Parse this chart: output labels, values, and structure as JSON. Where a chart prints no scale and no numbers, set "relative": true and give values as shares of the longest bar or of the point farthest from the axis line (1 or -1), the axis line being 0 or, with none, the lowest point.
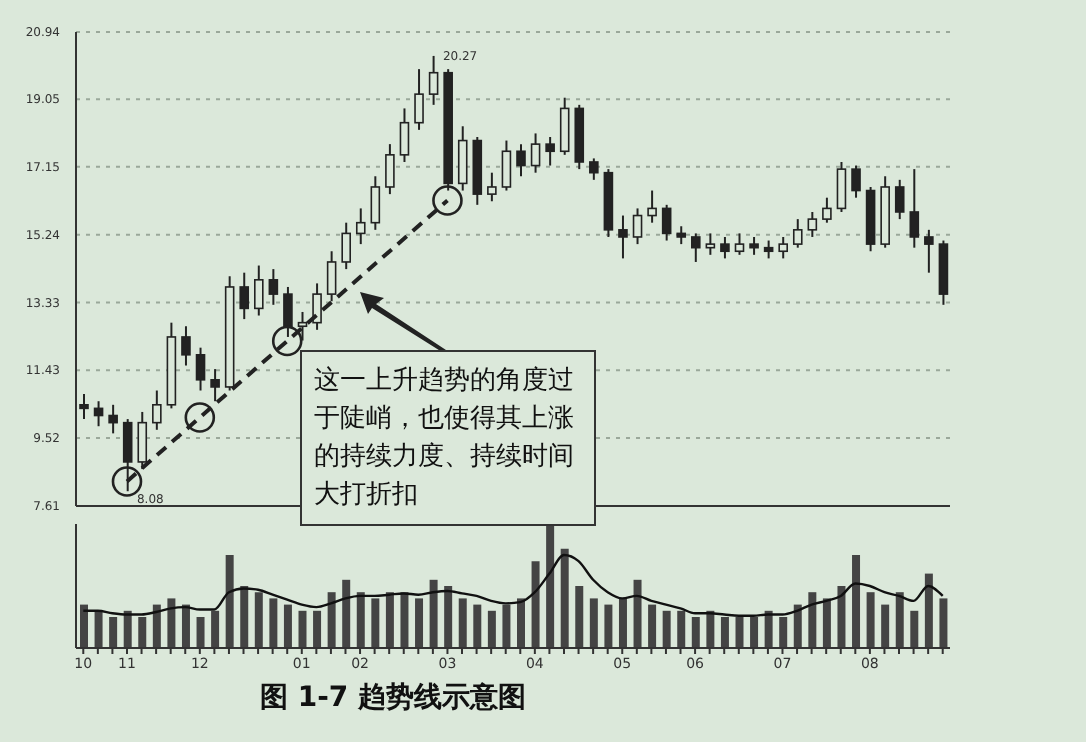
{
  "chart_data": [
    {
      "type": "candlestick",
      "color": "#222222",
      "categories": [
        "10",
        null,
        null,
        "11",
        null,
        null,
        null,
        null,
        "12",
        null,
        null,
        null,
        null,
        null,
        null,
        "01",
        null,
        null,
        null,
        "02",
        null,
        null,
        null,
        null,
        null,
        "03",
        null,
        null,
        null,
        null,
        null,
        "04",
        null,
        null,
        null,
        null,
        null,
        "05",
        null,
        null,
        null,
        null,
        "06",
        null,
        null,
        null,
        null,
        null,
        "07",
        null,
        null,
        null,
        null,
        null,
        "08",
        null,
        null,
        null,
        null,
        null
      ],
      "ohlc": [
        [
          10.5,
          10.8,
          10.1,
          10.4
        ],
        [
          10.4,
          10.6,
          9.9,
          10.2
        ],
        [
          10.2,
          10.5,
          9.7,
          10.0
        ],
        [
          10.0,
          10.1,
          8.08,
          8.9
        ],
        [
          8.9,
          10.3,
          8.7,
          10.0
        ],
        [
          10.0,
          10.9,
          9.8,
          10.5
        ],
        [
          10.5,
          12.8,
          10.4,
          12.4
        ],
        [
          12.4,
          12.7,
          11.6,
          11.9
        ],
        [
          11.9,
          12.1,
          10.9,
          11.2
        ],
        [
          11.2,
          11.5,
          10.6,
          11.0
        ],
        [
          11.0,
          14.1,
          10.9,
          13.8
        ],
        [
          13.8,
          14.2,
          12.9,
          13.2
        ],
        [
          13.2,
          14.4,
          13.0,
          14.0
        ],
        [
          14.0,
          14.3,
          13.3,
          13.6
        ],
        [
          13.6,
          13.8,
          12.4,
          12.7
        ],
        [
          12.7,
          13.1,
          12.3,
          12.8
        ],
        [
          12.8,
          13.9,
          12.6,
          13.6
        ],
        [
          13.6,
          14.8,
          13.4,
          14.5
        ],
        [
          14.5,
          15.6,
          14.3,
          15.3
        ],
        [
          15.3,
          16.0,
          15.0,
          15.6
        ],
        [
          15.6,
          16.9,
          15.4,
          16.6
        ],
        [
          16.6,
          17.8,
          16.4,
          17.5
        ],
        [
          17.5,
          18.8,
          17.3,
          18.4
        ],
        [
          18.4,
          19.9,
          18.2,
          19.2
        ],
        [
          19.2,
          20.27,
          18.9,
          19.8
        ],
        [
          19.8,
          19.9,
          16.5,
          16.7
        ],
        [
          16.7,
          18.3,
          16.5,
          17.9
        ],
        [
          17.9,
          18.0,
          16.1,
          16.4
        ],
        [
          16.4,
          17.0,
          16.2,
          16.6
        ],
        [
          16.6,
          17.9,
          16.5,
          17.6
        ],
        [
          17.6,
          17.8,
          16.9,
          17.2
        ],
        [
          17.2,
          18.1,
          17.0,
          17.8
        ],
        [
          17.8,
          18.0,
          17.2,
          17.6
        ],
        [
          17.6,
          19.1,
          17.5,
          18.8
        ],
        [
          18.8,
          18.9,
          17.1,
          17.3
        ],
        [
          17.3,
          17.4,
          16.8,
          17.0
        ],
        [
          17.0,
          17.1,
          15.2,
          15.4
        ],
        [
          15.4,
          15.8,
          14.6,
          15.2
        ],
        [
          15.2,
          16.0,
          15.0,
          15.8
        ],
        [
          15.8,
          16.5,
          15.6,
          16.0
        ],
        [
          16.0,
          16.1,
          15.1,
          15.3
        ],
        [
          15.3,
          15.5,
          15.0,
          15.2
        ],
        [
          15.2,
          15.3,
          14.5,
          14.9
        ],
        [
          14.9,
          15.3,
          14.7,
          15.0
        ],
        [
          15.0,
          15.2,
          14.6,
          14.8
        ],
        [
          14.8,
          15.3,
          14.7,
          15.0
        ],
        [
          15.0,
          15.2,
          14.7,
          14.9
        ],
        [
          14.9,
          15.1,
          14.6,
          14.8
        ],
        [
          14.8,
          15.2,
          14.6,
          15.0
        ],
        [
          15.0,
          15.7,
          14.9,
          15.4
        ],
        [
          15.4,
          15.9,
          15.2,
          15.7
        ],
        [
          15.7,
          16.3,
          15.6,
          16.0
        ],
        [
          16.0,
          17.3,
          15.9,
          17.1
        ],
        [
          17.1,
          17.2,
          16.3,
          16.5
        ],
        [
          16.5,
          16.6,
          14.8,
          15.0
        ],
        [
          15.0,
          16.9,
          14.9,
          16.6
        ],
        [
          16.6,
          16.8,
          15.7,
          15.9
        ],
        [
          15.9,
          17.1,
          14.9,
          15.2
        ],
        [
          15.2,
          15.4,
          14.2,
          15.0
        ],
        [
          15.0,
          15.1,
          13.3,
          13.6
        ]
      ],
      "series": [
        {
          "type": "line",
          "color": "#222222",
          "line_style": "dashed",
          "marker": "circle",
          "values": [
            null,
            null,
            null,
            8.3,
            null,
            null,
            null,
            null,
            10.1,
            null,
            null,
            null,
            null,
            null,
            12.25,
            null,
            null,
            null,
            null,
            null,
            null,
            null,
            null,
            null,
            null,
            16.2,
            null,
            null,
            null,
            null,
            null,
            null,
            null,
            null,
            null,
            null,
            null,
            null,
            null,
            null,
            null,
            null,
            null,
            null,
            null,
            null,
            null,
            null,
            null,
            null,
            null,
            null,
            null,
            null,
            null,
            null,
            null,
            null,
            null,
            null
          ]
        }
      ],
      "ylim": [
        7.61,
        20.94
      ],
      "yticks": [
        7.61,
        9.52,
        11.43,
        13.33,
        15.24,
        17.15,
        19.05,
        20.94
      ],
      "tick_labels": "y",
      "grid": "y",
      "annotations": [
        "20.27",
        "8.08",
        "这一上升趋势的角度过于陡峭，也使得其上涨的持续力度、持续时间大打折扣"
      ]
    },
    {
      "type": "bar",
      "relative": true,
      "categories": [
        "10",
        null,
        null,
        "11",
        null,
        null,
        null,
        null,
        "12",
        null,
        null,
        null,
        null,
        null,
        null,
        "01",
        null,
        null,
        null,
        "02",
        null,
        null,
        null,
        null,
        null,
        "03",
        null,
        null,
        null,
        null,
        null,
        "04",
        null,
        null,
        null,
        null,
        null,
        "05",
        null,
        null,
        null,
        null,
        "06",
        null,
        null,
        null,
        null,
        null,
        "07",
        null,
        null,
        null,
        null,
        null,
        "08",
        null,
        null,
        null,
        null,
        null
      ],
      "series": [
        {
          "type": "bar",
          "color": "#444444",
          "values": [
            0.35,
            0.3,
            0.25,
            0.3,
            0.25,
            0.35,
            0.4,
            0.35,
            0.25,
            0.3,
            0.75,
            0.5,
            0.45,
            0.4,
            0.35,
            0.3,
            0.3,
            0.45,
            0.55,
            0.45,
            0.4,
            0.45,
            0.45,
            0.4,
            0.55,
            0.5,
            0.4,
            0.35,
            0.3,
            0.35,
            0.4,
            0.7,
            1,
            0.8,
            0.5,
            0.4,
            0.35,
            0.4,
            0.55,
            0.35,
            0.3,
            0.3,
            0.25,
            0.3,
            0.25,
            0.25,
            0.25,
            0.3,
            0.25,
            0.35,
            0.45,
            0.4,
            0.5,
            0.75,
            0.45,
            0.35,
            0.45,
            0.3,
            0.6,
            0.4
          ]
        },
        {
          "type": "line",
          "color": "#111111",
          "values": [
            0.3,
            0.3,
            0.28,
            0.27,
            0.27,
            0.29,
            0.32,
            0.33,
            0.31,
            0.31,
            0.45,
            0.48,
            0.47,
            0.43,
            0.39,
            0.35,
            0.33,
            0.36,
            0.4,
            0.42,
            0.42,
            0.43,
            0.44,
            0.43,
            0.45,
            0.46,
            0.44,
            0.42,
            0.38,
            0.36,
            0.37,
            0.45,
            0.6,
            0.75,
            0.7,
            0.55,
            0.45,
            0.4,
            0.42,
            0.38,
            0.35,
            0.32,
            0.28,
            0.28,
            0.27,
            0.26,
            0.26,
            0.27,
            0.27,
            0.3,
            0.35,
            0.38,
            0.42,
            0.52,
            0.5,
            0.45,
            0.42,
            0.38,
            0.5,
            0.42
          ]
        }
      ],
      "tick_labels": "x",
      "annotations": [
        "图 1-7 趋势线示意图"
      ]
    }
  ]
}
